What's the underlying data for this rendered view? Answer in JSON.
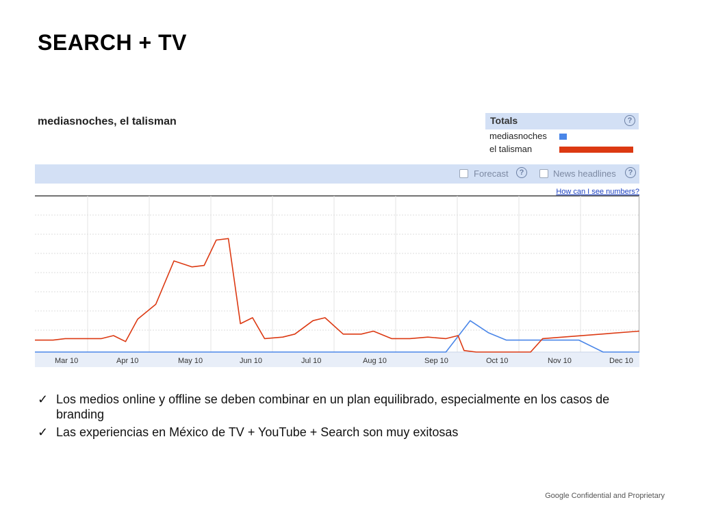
{
  "slide": {
    "title": "SEARCH + TV",
    "footer": "Google Confidential and Proprietary"
  },
  "trends": {
    "query_title": "mediasnoches, el talisman",
    "totals_label": "Totals",
    "totals_help": "?",
    "legend": [
      {
        "name": "mediasnoches",
        "color": "#4a86e8"
      },
      {
        "name": "el talisman",
        "color": "#dc3912"
      }
    ],
    "forecast_label": "Forecast",
    "news_label": "News headlines",
    "numbers_link": "How can I see numbers?"
  },
  "chart_data": {
    "type": "line",
    "x": [
      "Mar 10",
      "",
      "",
      "",
      "Apr 10",
      "",
      "",
      "",
      "May 10",
      "",
      "",
      "",
      "Jun 10",
      "",
      "",
      "",
      "",
      "Jul 10",
      "",
      "",
      "",
      "Aug 10",
      "",
      "",
      "",
      "Sep 10",
      "",
      "",
      "",
      "Oct 10",
      "",
      "",
      "",
      "",
      "Nov 10",
      "",
      "",
      "",
      "Dec 10",
      "",
      ""
    ],
    "tick_labels": [
      "Mar 10",
      "Apr 10",
      "May 10",
      "Jun 10",
      "Jul 10",
      "Aug 10",
      "Sep 10",
      "Oct 10",
      "Nov 10",
      "Dec 10"
    ],
    "ylim": [
      0,
      100
    ],
    "grid": true,
    "series": [
      {
        "name": "mediasnoches",
        "color": "#4a86e8",
        "points": [
          [
            0,
            0
          ],
          [
            20,
            0
          ],
          [
            30,
            0
          ],
          [
            40,
            0
          ],
          [
            50,
            0
          ],
          [
            60,
            0
          ],
          [
            68,
            0
          ],
          [
            72,
            21
          ],
          [
            75,
            13
          ],
          [
            78,
            8
          ],
          [
            82,
            8
          ],
          [
            86,
            8
          ],
          [
            90,
            8
          ],
          [
            94,
            0
          ],
          [
            100,
            0
          ]
        ]
      },
      {
        "name": "el talisman",
        "color": "#dc3912",
        "points": [
          [
            0,
            8
          ],
          [
            3,
            8
          ],
          [
            5,
            9
          ],
          [
            7,
            9
          ],
          [
            9,
            9
          ],
          [
            11,
            9
          ],
          [
            13,
            11
          ],
          [
            15,
            7
          ],
          [
            17,
            22
          ],
          [
            20,
            32
          ],
          [
            23,
            61
          ],
          [
            26,
            57
          ],
          [
            28,
            58
          ],
          [
            30,
            75
          ],
          [
            32,
            76
          ],
          [
            34,
            19
          ],
          [
            36,
            23
          ],
          [
            38,
            9
          ],
          [
            41,
            10
          ],
          [
            43,
            12
          ],
          [
            46,
            21
          ],
          [
            48,
            23
          ],
          [
            51,
            12
          ],
          [
            54,
            12
          ],
          [
            56,
            14
          ],
          [
            59,
            9
          ],
          [
            62,
            9
          ],
          [
            65,
            10
          ],
          [
            68,
            9
          ],
          [
            70,
            11
          ],
          [
            71,
            1
          ],
          [
            73,
            0
          ],
          [
            78,
            0
          ],
          [
            82,
            0
          ],
          [
            84,
            9
          ],
          [
            100,
            14
          ]
        ]
      }
    ]
  },
  "bullets": [
    {
      "check": "✓",
      "text": "Los medios online y offline se deben combinar en un plan equilibrado, especialmente en los casos de branding"
    },
    {
      "check": "✓",
      "text": "Las experiencias en México de TV + YouTube + Search son muy exitosas"
    }
  ]
}
